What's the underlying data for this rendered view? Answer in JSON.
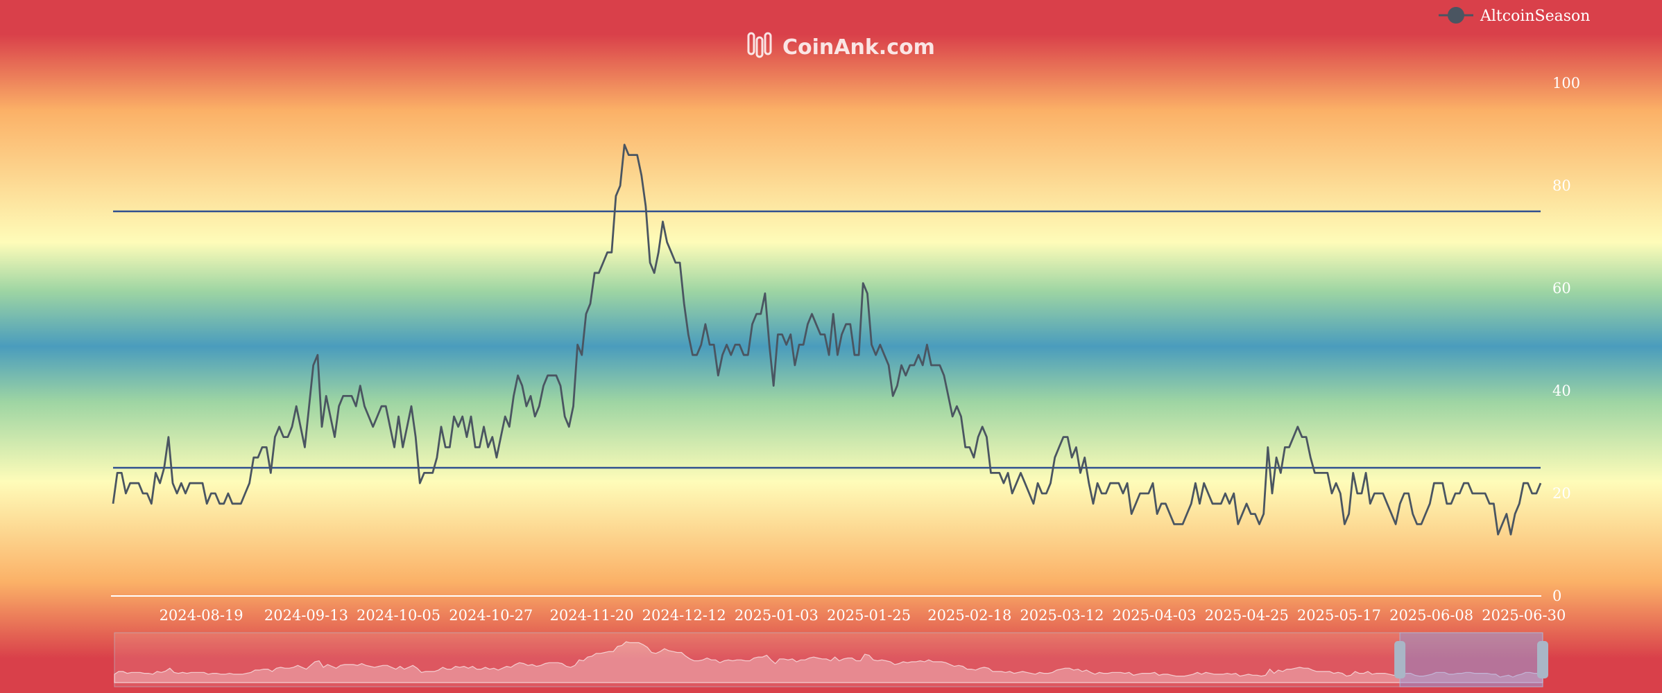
{
  "watermark": {
    "text": "CoinAnk.com"
  },
  "legend": {
    "label": "AltcoinSeason",
    "placement": "top-right"
  },
  "colors": {
    "series_line": "#4a5561",
    "threshold_line": "#2f4f8f",
    "axis_text": "#ffffff",
    "band_red": "#d9404a",
    "band_orange": "#fbb167",
    "band_yellow": "#fefcb9",
    "band_green": "#9ed5a3",
    "band_blue": "#4a9cbd"
  },
  "chart_data": {
    "type": "line",
    "title": "",
    "xlabel": "",
    "ylabel": "",
    "ylim": [
      0,
      100
    ],
    "y_ticks": [
      "0",
      "20",
      "40",
      "60",
      "80",
      "100"
    ],
    "x_tick_labels": [
      "2024-08-19",
      "2024-09-13",
      "2024-10-05",
      "2024-10-27",
      "2024-11-20",
      "2024-12-12",
      "2025-01-03",
      "2025-01-25",
      "2025-02-18",
      "2025-03-12",
      "2025-04-03",
      "2025-04-25",
      "2025-05-17",
      "2025-06-08",
      "2025-06-30"
    ],
    "reference_lines": [
      75,
      25
    ],
    "grid": false,
    "has_data_zoom": true,
    "series": [
      {
        "name": "AltcoinSeason",
        "x_start": "2024-07-29",
        "x_end": "2025-07-04",
        "values": [
          18,
          24,
          24,
          20,
          22,
          22,
          22,
          20,
          20,
          18,
          24,
          22,
          25,
          31,
          22,
          20,
          22,
          20,
          22,
          22,
          22,
          22,
          18,
          20,
          20,
          18,
          18,
          20,
          18,
          18,
          18,
          20,
          22,
          27,
          27,
          29,
          29,
          24,
          31,
          33,
          31,
          31,
          33,
          37,
          33,
          29,
          37,
          45,
          47,
          33,
          39,
          35,
          31,
          37,
          39,
          39,
          39,
          37,
          41,
          37,
          35,
          33,
          35,
          37,
          37,
          33,
          29,
          35,
          29,
          33,
          37,
          31,
          22,
          24,
          24,
          24,
          27,
          33,
          29,
          29,
          35,
          33,
          35,
          31,
          35,
          29,
          29,
          33,
          29,
          31,
          27,
          31,
          35,
          33,
          39,
          43,
          41,
          37,
          39,
          35,
          37,
          41,
          43,
          43,
          43,
          41,
          35,
          33,
          37,
          49,
          47,
          55,
          57,
          63,
          63,
          65,
          67,
          67,
          78,
          80,
          88,
          86,
          86,
          86,
          82,
          76,
          65,
          63,
          67,
          73,
          69,
          67,
          65,
          65,
          57,
          51,
          47,
          47,
          49,
          53,
          49,
          49,
          43,
          47,
          49,
          47,
          49,
          49,
          47,
          47,
          53,
          55,
          55,
          59,
          49,
          41,
          51,
          51,
          49,
          51,
          45,
          49,
          49,
          53,
          55,
          53,
          51,
          51,
          47,
          55,
          47,
          51,
          53,
          53,
          47,
          47,
          61,
          59,
          49,
          47,
          49,
          47,
          45,
          39,
          41,
          45,
          43,
          45,
          45,
          47,
          45,
          49,
          45,
          45,
          45,
          43,
          39,
          35,
          37,
          35,
          29,
          29,
          27,
          31,
          33,
          31,
          24,
          24,
          24,
          22,
          24,
          20,
          22,
          24,
          22,
          20,
          18,
          22,
          20,
          20,
          22,
          27,
          29,
          31,
          31,
          27,
          29,
          24,
          27,
          22,
          18,
          22,
          20,
          20,
          22,
          22,
          22,
          20,
          22,
          16,
          18,
          20,
          20,
          20,
          22,
          16,
          18,
          18,
          16,
          14,
          14,
          14,
          16,
          18,
          22,
          18,
          22,
          20,
          18,
          18,
          18,
          20,
          18,
          20,
          14,
          16,
          18,
          16,
          16,
          14,
          16,
          29,
          20,
          27,
          24,
          29,
          29,
          31,
          33,
          31,
          31,
          27,
          24,
          24,
          24,
          24,
          20,
          22,
          20,
          14,
          16,
          24,
          20,
          20,
          24,
          18,
          20,
          20,
          20,
          18,
          16,
          14,
          18,
          20,
          20,
          16,
          14,
          14,
          16,
          18,
          22,
          22,
          22,
          18,
          18,
          20,
          20,
          22,
          22,
          20,
          20,
          20,
          20,
          18,
          18,
          12,
          14,
          16,
          12,
          16,
          18,
          22,
          22,
          20,
          20,
          22
        ]
      }
    ],
    "zoom_window": {
      "start": "2025-05-31",
      "end": "2025-07-04"
    }
  }
}
